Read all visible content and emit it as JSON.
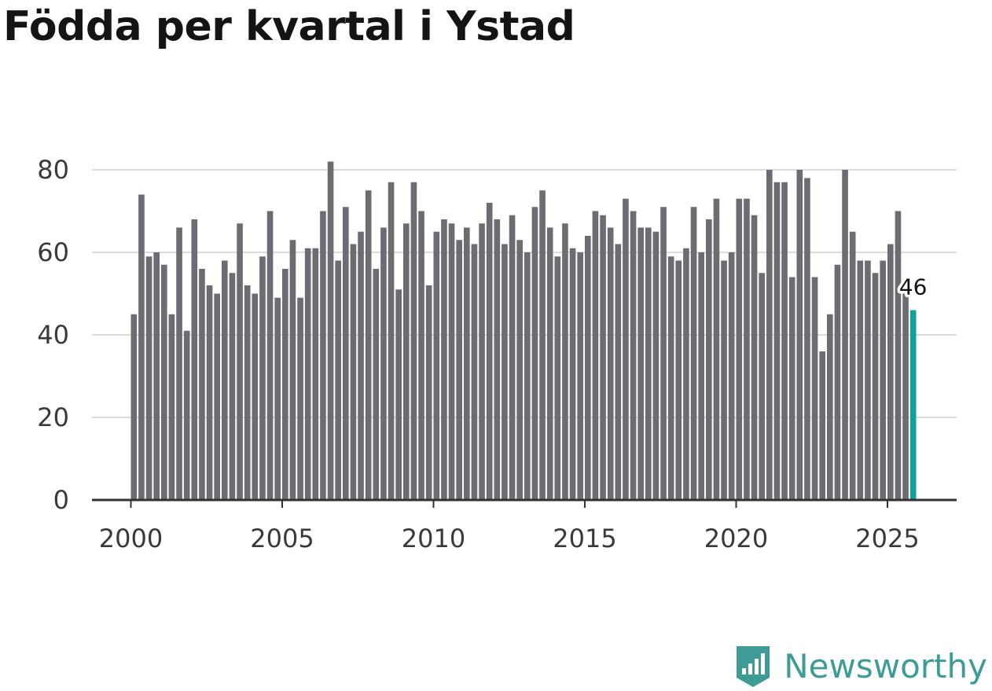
{
  "title": "Födda per kvartal i Ystad",
  "brand": {
    "name": "Newsworthy",
    "icon": "newsworthy-logo-icon",
    "color": "#3e9b95"
  },
  "colors": {
    "bar": "#6d6c73",
    "highlight": "#13a197",
    "grid": "#dcdcdc",
    "axis": "#333333"
  },
  "chart_data": {
    "type": "bar",
    "title": "Födda per kvartal i Ystad",
    "xlabel": "",
    "ylabel": "",
    "ylim": [
      0,
      80
    ],
    "yticks": [
      0,
      20,
      40,
      60,
      80
    ],
    "xticks": [
      2000,
      2005,
      2010,
      2015,
      2020,
      2025
    ],
    "x_start_year": 2000,
    "grid": true,
    "highlight_last": true,
    "last_label": "46",
    "values": [
      45,
      74,
      59,
      60,
      57,
      45,
      66,
      41,
      68,
      56,
      52,
      50,
      58,
      55,
      67,
      52,
      50,
      59,
      70,
      49,
      56,
      63,
      49,
      61,
      61,
      70,
      82,
      58,
      71,
      62,
      65,
      75,
      56,
      66,
      77,
      51,
      67,
      77,
      70,
      52,
      65,
      68,
      67,
      63,
      66,
      62,
      67,
      72,
      68,
      62,
      69,
      63,
      60,
      71,
      75,
      66,
      59,
      67,
      61,
      60,
      64,
      70,
      69,
      66,
      62,
      73,
      70,
      66,
      66,
      65,
      71,
      59,
      58,
      61,
      71,
      60,
      68,
      73,
      58,
      60,
      73,
      73,
      69,
      55,
      80,
      77,
      77,
      54,
      80,
      78,
      54,
      36,
      45,
      57,
      80,
      65,
      58,
      58,
      55,
      58,
      62,
      70,
      50,
      46
    ]
  }
}
